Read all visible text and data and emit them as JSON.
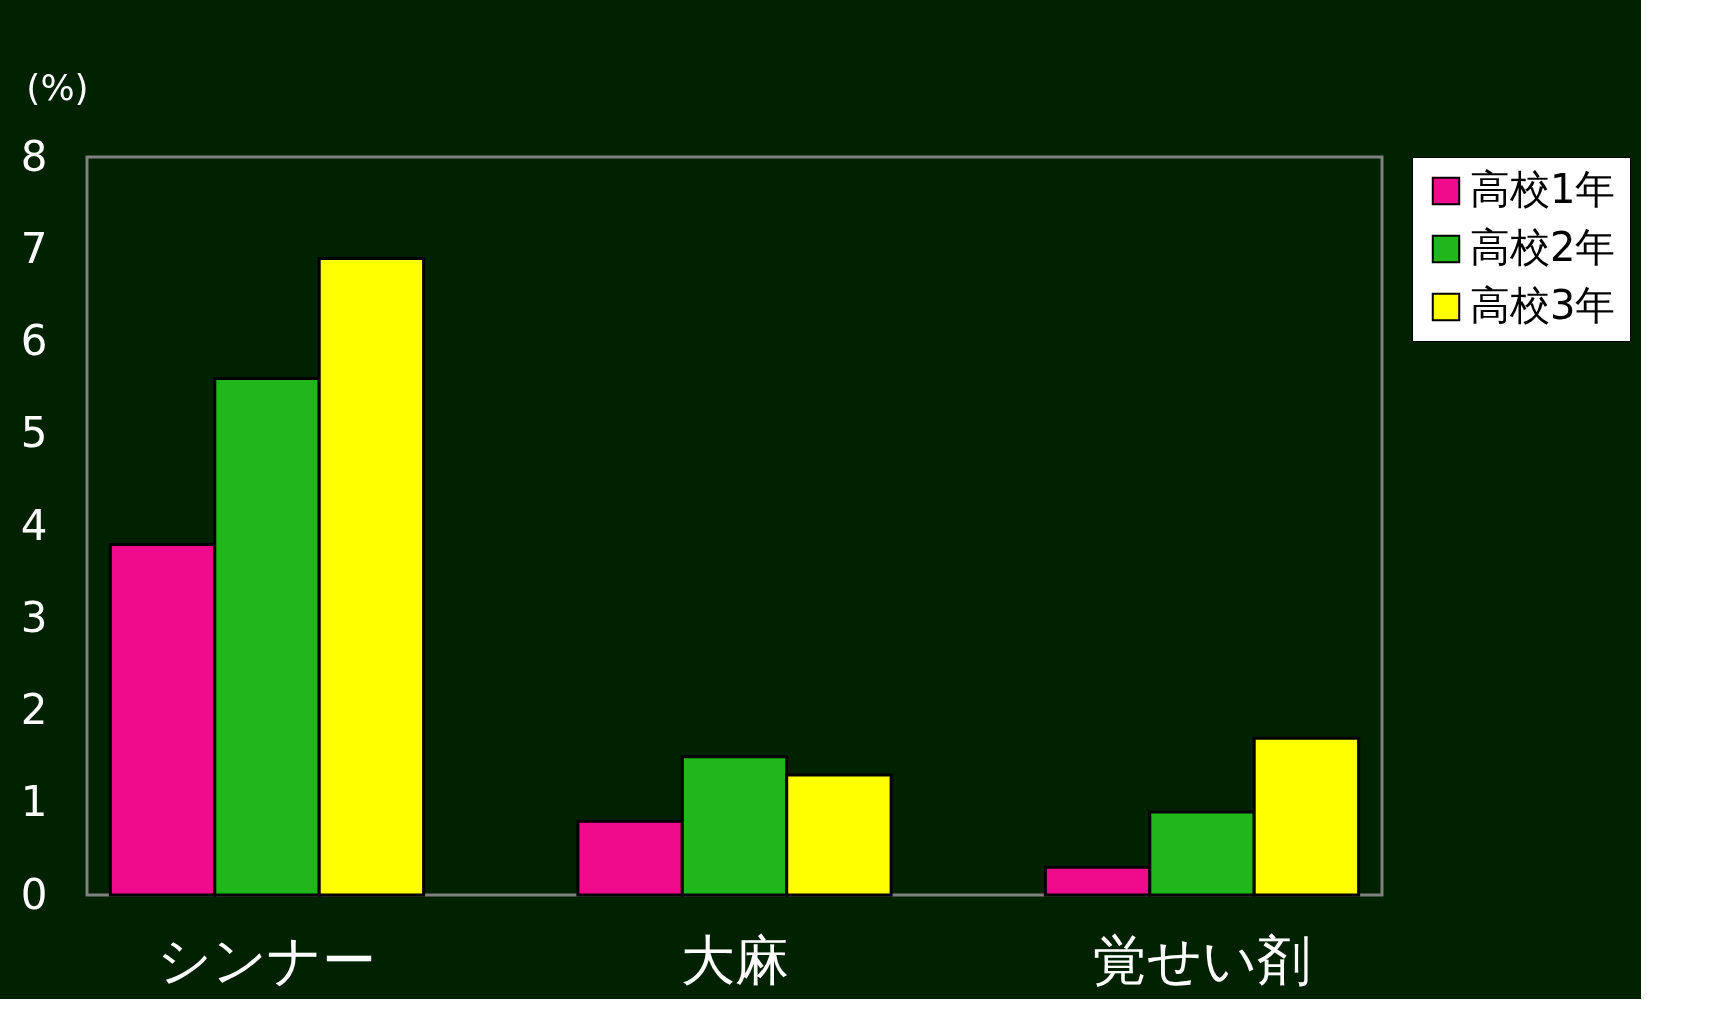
{
  "chart_data": {
    "type": "bar",
    "ylabel": "(%)",
    "categories": [
      "シンナー",
      "大麻",
      "覚せい剤"
    ],
    "series": [
      {
        "name": "高校1年",
        "color": "#f00a8c",
        "values": [
          3.8,
          0.8,
          0.3
        ]
      },
      {
        "name": "高校2年",
        "color": "#1fb719",
        "values": [
          5.6,
          1.5,
          0.9
        ]
      },
      {
        "name": "高校3年",
        "color": "#ffff00",
        "values": [
          6.9,
          1.3,
          1.7
        ]
      }
    ],
    "ylim": [
      0,
      8
    ],
    "yticks": [
      0,
      1,
      2,
      3,
      4,
      5,
      6,
      7,
      8
    ],
    "grid": false,
    "legend": "right"
  }
}
